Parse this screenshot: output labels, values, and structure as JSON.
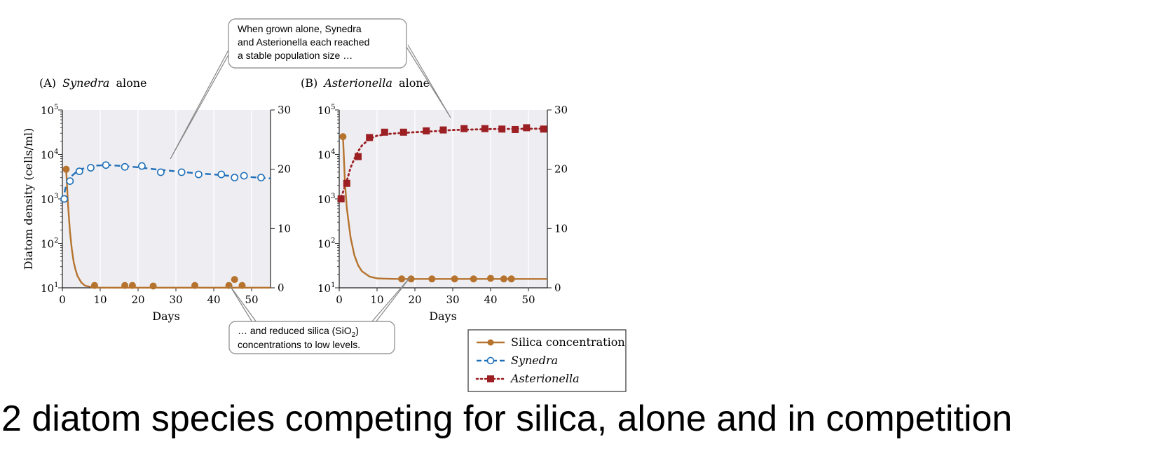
{
  "caption": "2 diatom species competing for silica, alone and in competition",
  "callouts": {
    "top": [
      "When grown alone, Synedra",
      "and Asterionella each reached",
      "a stable population size …"
    ],
    "bottom_pre": "… and reduced silica (SiO",
    "bottom_sub": "2",
    "bottom_post": ")",
    "bottom_line2": "concentrations to low levels."
  },
  "legend": [
    "Silica concentration",
    "Synedra",
    "Asterionella"
  ],
  "colors": {
    "silica": "#b5732e",
    "synedra": "#1f6fb8",
    "asterionella": "#9c1f23",
    "plot_bg": "#eeedf1",
    "grid": "#ffffff"
  },
  "chart_data": [
    {
      "type": "line",
      "panel_label": "(A)",
      "title_species": "Synedra",
      "title_suffix": "alone",
      "xlabel": "Days",
      "ylabel": "Diatom density (cells/ml)",
      "y2label": "",
      "xlim": [
        0,
        55
      ],
      "ylim": [
        1,
        5
      ],
      "y_scale": "log10",
      "y2lim": [
        0,
        30
      ],
      "xticks": [
        "0",
        "10",
        "20",
        "30",
        "40",
        "50"
      ],
      "yticks": [
        "10",
        "10",
        "10",
        "10",
        "10"
      ],
      "ytick_exponents": [
        "1",
        "2",
        "3",
        "4",
        "5"
      ],
      "y2ticks": [
        "0",
        "10",
        "20",
        "30"
      ],
      "grid": true,
      "series": [
        {
          "name": "Synedra",
          "axis": "left",
          "style": "dashed-open-circle",
          "x": [
            0.5,
            2,
            4.5,
            7.5,
            11.5,
            16.5,
            21,
            26,
            31.5,
            36,
            42,
            45.5,
            48,
            52.5
          ],
          "y": [
            3.0,
            3.4,
            3.62,
            3.7,
            3.76,
            3.72,
            3.74,
            3.6,
            3.6,
            3.55,
            3.55,
            3.48,
            3.52,
            3.48
          ],
          "fit_x": [
            0,
            1,
            2,
            4,
            6,
            9,
            12,
            16,
            20,
            25,
            30,
            35,
            40,
            45,
            50,
            55
          ],
          "fit_y": [
            2.95,
            3.3,
            3.48,
            3.63,
            3.7,
            3.75,
            3.76,
            3.74,
            3.71,
            3.66,
            3.62,
            3.58,
            3.55,
            3.51,
            3.49,
            3.46
          ]
        },
        {
          "name": "Silica concentration",
          "axis": "right",
          "style": "solid-filled-circle",
          "x": [
            1,
            8.5,
            16.5,
            18.5,
            24,
            35,
            44,
            45.5,
            47.5
          ],
          "y": [
            20,
            0.4,
            0.4,
            0.4,
            0.3,
            0.4,
            0.4,
            1.4,
            0.4
          ],
          "fit_x": [
            0.3,
            1,
            1.5,
            2,
            2.5,
            3,
            3.5,
            4,
            5,
            6,
            8,
            10,
            55
          ],
          "fit_y": [
            20,
            20,
            14,
            9.5,
            6.5,
            4.3,
            3.0,
            2.0,
            0.9,
            0.35,
            0.08,
            0.02,
            0.02
          ]
        }
      ]
    },
    {
      "type": "line",
      "panel_label": "(B)",
      "title_species": "Asterionella",
      "title_suffix": "alone",
      "xlabel": "Days",
      "ylabel": "",
      "y2label": "",
      "xlim": [
        0,
        55
      ],
      "ylim": [
        1,
        5
      ],
      "y_scale": "log10",
      "y2lim": [
        0,
        30
      ],
      "xticks": [
        "0",
        "10",
        "20",
        "30",
        "40",
        "50"
      ],
      "yticks": [
        "10",
        "10",
        "10",
        "10",
        "10"
      ],
      "ytick_exponents": [
        "1",
        "2",
        "3",
        "4",
        "5"
      ],
      "y2ticks": [
        "0",
        "10",
        "20",
        "30"
      ],
      "grid": true,
      "series": [
        {
          "name": "Asterionella",
          "axis": "left",
          "style": "dotted-filled-square",
          "x": [
            0.5,
            2,
            5,
            8,
            12,
            17,
            23,
            27.5,
            33,
            38.5,
            43,
            46.5,
            49.5,
            54
          ],
          "y": [
            3.0,
            3.35,
            3.95,
            4.38,
            4.5,
            4.5,
            4.53,
            4.55,
            4.58,
            4.58,
            4.57,
            4.56,
            4.6,
            4.57
          ],
          "fit_x": [
            0,
            1,
            2,
            3,
            4,
            5,
            6,
            8,
            10,
            13,
            16,
            20,
            25,
            30,
            40,
            55
          ],
          "fit_y": [
            2.95,
            3.15,
            3.4,
            3.7,
            3.9,
            4.07,
            4.2,
            4.35,
            4.42,
            4.46,
            4.48,
            4.5,
            4.52,
            4.55,
            4.57,
            4.58
          ]
        },
        {
          "name": "Silica concentration",
          "axis": "right",
          "style": "solid-filled-circle",
          "x": [
            1,
            16.5,
            19,
            24.5,
            30.5,
            35.5,
            40,
            43.5,
            45.5
          ],
          "y": [
            25.5,
            1.5,
            1.5,
            1.5,
            1.5,
            1.5,
            1.6,
            1.5,
            1.5
          ],
          "fit_x": [
            0.3,
            1,
            1.5,
            2,
            3,
            4,
            5,
            6,
            8,
            10,
            12,
            15,
            55
          ],
          "fit_y": [
            25.5,
            25.5,
            18,
            13.5,
            8.5,
            5.5,
            3.8,
            2.8,
            1.9,
            1.6,
            1.55,
            1.5,
            1.5
          ]
        }
      ]
    }
  ]
}
